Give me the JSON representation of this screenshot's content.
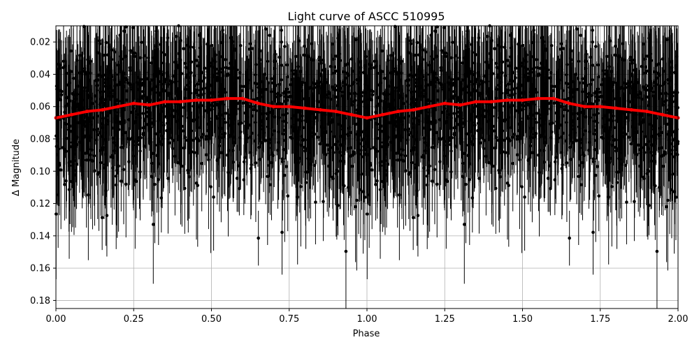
{
  "chart_data": {
    "type": "scatter",
    "title": "Light curve of ASCC 510995",
    "xlabel": "Phase",
    "ylabel": "Δ Magnitude",
    "xlim": [
      0.0,
      2.0
    ],
    "ylim": [
      0.185,
      0.01
    ],
    "y_inverted": true,
    "grid": true,
    "x_ticks": [
      0.0,
      0.25,
      0.5,
      0.75,
      1.0,
      1.25,
      1.5,
      1.75,
      2.0
    ],
    "x_tick_labels": [
      "0.00",
      "0.25",
      "0.50",
      "0.75",
      "1.00",
      "1.25",
      "1.50",
      "1.75",
      "2.00"
    ],
    "y_ticks": [
      0.02,
      0.04,
      0.06,
      0.08,
      0.1,
      0.12,
      0.14,
      0.16,
      0.18
    ],
    "y_tick_labels": [
      "0.02",
      "0.04",
      "0.06",
      "0.08",
      "0.10",
      "0.12",
      "0.14",
      "0.16",
      "0.18"
    ],
    "series": [
      {
        "kind": "observations_with_errorbars",
        "color": "#000000",
        "phase_period": 1.0,
        "mean_y": 0.066,
        "point_scatter_y": 0.024,
        "errorbar_halfwidth_y": 0.03
      },
      {
        "kind": "binned_mean_curve",
        "color": "#ff0000",
        "x": [
          0.0,
          0.05,
          0.1,
          0.15,
          0.2,
          0.25,
          0.3,
          0.35,
          0.4,
          0.45,
          0.5,
          0.55,
          0.6,
          0.65,
          0.7,
          0.75,
          0.8,
          0.85,
          0.9,
          0.95,
          1.0,
          1.05,
          1.1,
          1.15,
          1.2,
          1.25,
          1.3,
          1.35,
          1.4,
          1.45,
          1.5,
          1.55,
          1.6,
          1.65,
          1.7,
          1.75,
          1.8,
          1.85,
          1.9,
          1.95,
          2.0
        ],
        "y": [
          0.067,
          0.065,
          0.063,
          0.062,
          0.06,
          0.058,
          0.059,
          0.057,
          0.057,
          0.056,
          0.056,
          0.055,
          0.055,
          0.058,
          0.06,
          0.06,
          0.061,
          0.062,
          0.063,
          0.065,
          0.067,
          0.065,
          0.063,
          0.062,
          0.06,
          0.058,
          0.059,
          0.057,
          0.057,
          0.056,
          0.056,
          0.055,
          0.055,
          0.058,
          0.06,
          0.06,
          0.061,
          0.062,
          0.063,
          0.065,
          0.067
        ]
      }
    ]
  }
}
